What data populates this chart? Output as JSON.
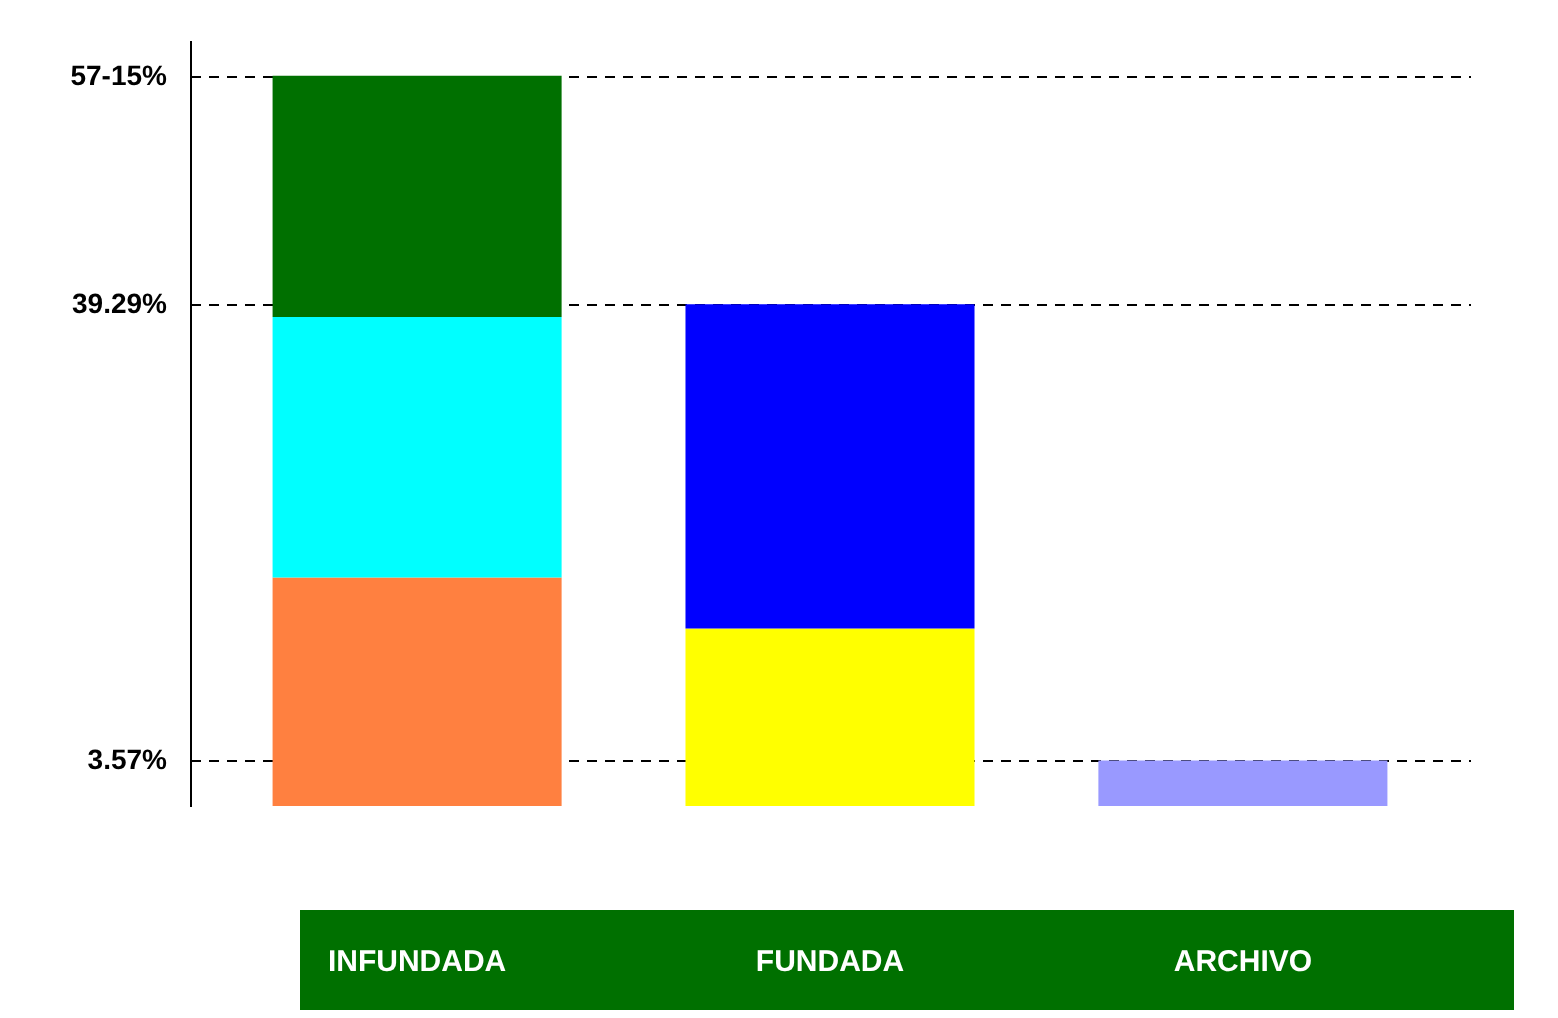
{
  "chart_data": {
    "type": "bar",
    "stacked": true,
    "categories": [
      "INFUNDADA",
      "FUNDADA",
      "ARCHIVO"
    ],
    "series": [
      {
        "colors": [
          "#ff8040",
          "#ffff00",
          "#9999ff"
        ],
        "values": [
          17.9,
          13.9,
          3.57
        ]
      },
      {
        "colors": [
          "#00ffff",
          "#0000ff",
          null
        ],
        "values": [
          20.4,
          25.4,
          null
        ]
      },
      {
        "colors": [
          "#007000",
          null,
          null
        ],
        "values": [
          18.9,
          null,
          null
        ]
      }
    ],
    "ylim": [
      0,
      60
    ],
    "yticks": [
      {
        "value": 3.57,
        "label": "3.57%"
      },
      {
        "value": 39.29,
        "label": "39.29%"
      },
      {
        "value": 57.15,
        "label": "57-15%"
      }
    ],
    "grid": "y"
  }
}
